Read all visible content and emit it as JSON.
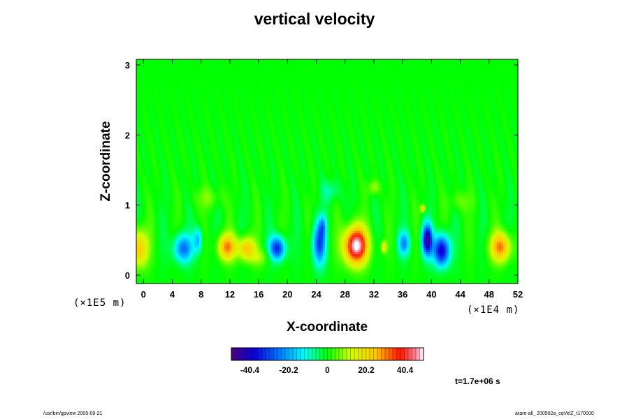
{
  "chart_data": {
    "type": "heatmap",
    "title": "vertical velocity",
    "xlabel": "X-coordinate",
    "ylabel": "Z-coordinate",
    "x_scale_label": "(×1E4 m)",
    "z_scale_label": "(×1E5 m)",
    "xlim": [
      -1,
      52
    ],
    "ylim": [
      -0.12,
      3.08
    ],
    "x_ticks": [
      0,
      4,
      8,
      12,
      16,
      20,
      24,
      28,
      32,
      36,
      40,
      44,
      48,
      52
    ],
    "y_ticks": [
      0,
      1,
      2,
      3
    ],
    "colorbar": {
      "range": [
        -50,
        50
      ],
      "ticks": [
        -40.4,
        -20.2,
        0,
        20.2,
        40.4
      ],
      "tick_labels": [
        "-40.4",
        "-20.2",
        "0",
        "20.2",
        "40.4"
      ]
    },
    "features": [
      {
        "x": -0.6,
        "z": 0.38,
        "value": 25,
        "sx": 1.2,
        "sz": 0.26
      },
      {
        "x": 5.5,
        "z": 0.38,
        "value": -26,
        "sx": 1.3,
        "sz": 0.2
      },
      {
        "x": 7.6,
        "z": 0.5,
        "value": -18,
        "sx": 0.6,
        "sz": 0.18
      },
      {
        "x": 11.6,
        "z": 0.4,
        "value": 30,
        "sx": 1.2,
        "sz": 0.18
      },
      {
        "x": 14.3,
        "z": 0.38,
        "value": 25,
        "sx": 1.2,
        "sz": 0.16
      },
      {
        "x": 18.6,
        "z": 0.38,
        "value": -34,
        "sx": 1.1,
        "sz": 0.17
      },
      {
        "x": 24.4,
        "z": 0.45,
        "value": -30,
        "sx": 0.9,
        "sz": 0.3
      },
      {
        "x": 24.9,
        "z": 0.7,
        "value": -15,
        "sx": 0.5,
        "sz": 0.15
      },
      {
        "x": 29.5,
        "z": 0.42,
        "value": 52,
        "sx": 1.6,
        "sz": 0.26
      },
      {
        "x": 33.4,
        "z": 0.4,
        "value": 18,
        "sx": 0.4,
        "sz": 0.08
      },
      {
        "x": 36.2,
        "z": 0.45,
        "value": -22,
        "sx": 0.8,
        "sz": 0.17
      },
      {
        "x": 39.4,
        "z": 0.5,
        "value": -45,
        "sx": 0.7,
        "sz": 0.22
      },
      {
        "x": 41.4,
        "z": 0.35,
        "value": -42,
        "sx": 1.1,
        "sz": 0.22
      },
      {
        "x": 38.8,
        "z": 0.95,
        "value": 25,
        "sx": 0.3,
        "sz": 0.05
      },
      {
        "x": 49.6,
        "z": 0.4,
        "value": 30,
        "sx": 1.4,
        "sz": 0.2
      },
      {
        "x": 16.2,
        "z": 0.25,
        "value": 8,
        "sx": 1.5,
        "sz": 0.12
      },
      {
        "x": 32.0,
        "z": 1.25,
        "value": 10,
        "sx": 0.8,
        "sz": 0.1
      },
      {
        "x": 26.0,
        "z": 1.2,
        "value": -8,
        "sx": 1.2,
        "sz": 0.15
      },
      {
        "x": 44.0,
        "z": 1.05,
        "value": 6,
        "sx": 1.5,
        "sz": 0.15
      },
      {
        "x": 9.0,
        "z": 1.1,
        "value": 6,
        "sx": 2.0,
        "sz": 0.15
      }
    ],
    "grid": false
  },
  "annotations": {
    "time": "t=1.7e+06 s",
    "footer_left": "/usr/bin/gpview 2005-09-21",
    "footer_right": "arare-all_ 200502a_cqVelZ_t170000"
  }
}
